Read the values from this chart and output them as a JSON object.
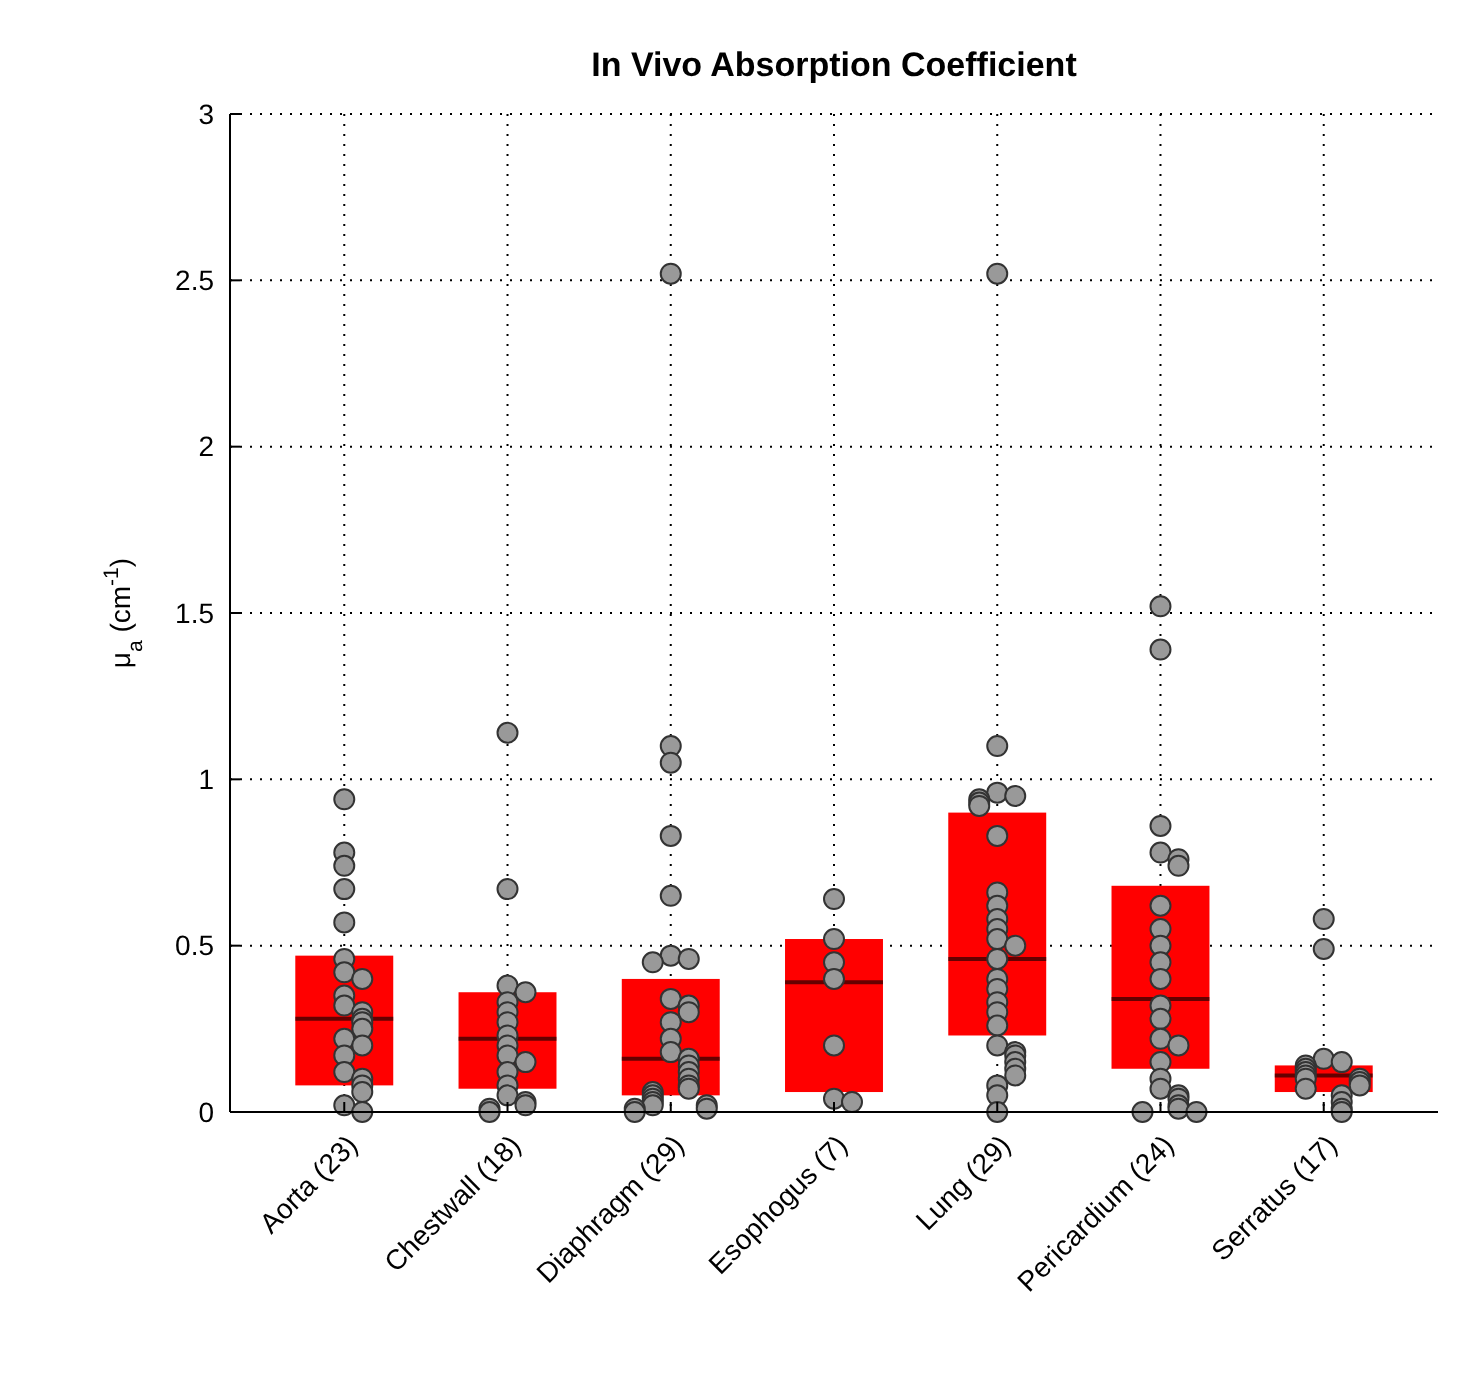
{
  "chart_data": {
    "type": "box",
    "title": "In Vivo Absorption Coefficient",
    "ylabel": "μ$_{a}$ (cm$^{-1}$)",
    "categories": [
      "Aorta (23)",
      "Chestwall (18)",
      "Diaphragm (29)",
      "Esophogus (7)",
      "Lung (29)",
      "Pericardium (24)",
      "Serratus (17)"
    ],
    "ylim": [
      0,
      3
    ],
    "yticks": [
      0,
      0.5,
      1,
      1.5,
      2,
      2.5,
      3
    ],
    "grid": true,
    "series": [
      {
        "type": "box",
        "color": "#ff0000",
        "boxes": [
          {
            "low": 0.08,
            "q1": 0.08,
            "median": 0.28,
            "q3": 0.47,
            "high": 0.47
          },
          {
            "low": 0.07,
            "q1": 0.07,
            "median": 0.22,
            "q3": 0.36,
            "high": 0.36
          },
          {
            "low": 0.05,
            "q1": 0.05,
            "median": 0.16,
            "q3": 0.4,
            "high": 0.4
          },
          {
            "low": 0.06,
            "q1": 0.06,
            "median": 0.39,
            "q3": 0.52,
            "high": 0.52
          },
          {
            "low": 0.23,
            "q1": 0.23,
            "median": 0.46,
            "q3": 0.9,
            "high": 0.9
          },
          {
            "low": 0.13,
            "q1": 0.13,
            "median": 0.34,
            "q3": 0.68,
            "high": 0.68
          },
          {
            "low": 0.06,
            "q1": 0.06,
            "median": 0.11,
            "q3": 0.14,
            "high": 0.14
          }
        ]
      },
      {
        "type": "scatter",
        "color": "#999999",
        "marker": "circle",
        "x": [
          "Aorta (23)",
          "Aorta (23)",
          "Aorta (23)",
          "Aorta (23)",
          "Aorta (23)",
          "Aorta (23)",
          "Aorta (23)",
          "Aorta (23)",
          "Aorta (23)",
          "Aorta (23)",
          "Aorta (23)",
          "Aorta (23)",
          "Aorta (23)",
          "Aorta (23)",
          "Aorta (23)",
          "Aorta (23)",
          "Aorta (23)",
          "Aorta (23)",
          "Aorta (23)",
          "Aorta (23)",
          "Aorta (23)",
          "Aorta (23)",
          "Aorta (23)",
          "Chestwall (18)",
          "Chestwall (18)",
          "Chestwall (18)",
          "Chestwall (18)",
          "Chestwall (18)",
          "Chestwall (18)",
          "Chestwall (18)",
          "Chestwall (18)",
          "Chestwall (18)",
          "Chestwall (18)",
          "Chestwall (18)",
          "Chestwall (18)",
          "Chestwall (18)",
          "Chestwall (18)",
          "Chestwall (18)",
          "Chestwall (18)",
          "Chestwall (18)",
          "Chestwall (18)",
          "Diaphragm (29)",
          "Diaphragm (29)",
          "Diaphragm (29)",
          "Diaphragm (29)",
          "Diaphragm (29)",
          "Diaphragm (29)",
          "Diaphragm (29)",
          "Diaphragm (29)",
          "Diaphragm (29)",
          "Diaphragm (29)",
          "Diaphragm (29)",
          "Diaphragm (29)",
          "Diaphragm (29)",
          "Diaphragm (29)",
          "Diaphragm (29)",
          "Diaphragm (29)",
          "Diaphragm (29)",
          "Diaphragm (29)",
          "Diaphragm (29)",
          "Diaphragm (29)",
          "Diaphragm (29)",
          "Diaphragm (29)",
          "Diaphragm (29)",
          "Diaphragm (29)",
          "Diaphragm (29)",
          "Diaphragm (29)",
          "Diaphragm (29)",
          "Diaphragm (29)",
          "Diaphragm (29)",
          "Esophogus (7)",
          "Esophogus (7)",
          "Esophogus (7)",
          "Esophogus (7)",
          "Esophogus (7)",
          "Esophogus (7)",
          "Esophogus (7)",
          "Lung (29)",
          "Lung (29)",
          "Lung (29)",
          "Lung (29)",
          "Lung (29)",
          "Lung (29)",
          "Lung (29)",
          "Lung (29)",
          "Lung (29)",
          "Lung (29)",
          "Lung (29)",
          "Lung (29)",
          "Lung (29)",
          "Lung (29)",
          "Lung (29)",
          "Lung (29)",
          "Lung (29)",
          "Lung (29)",
          "Lung (29)",
          "Lung (29)",
          "Lung (29)",
          "Lung (29)",
          "Lung (29)",
          "Lung (29)",
          "Lung (29)",
          "Lung (29)",
          "Lung (29)",
          "Lung (29)",
          "Lung (29)",
          "Pericardium (24)",
          "Pericardium (24)",
          "Pericardium (24)",
          "Pericardium (24)",
          "Pericardium (24)",
          "Pericardium (24)",
          "Pericardium (24)",
          "Pericardium (24)",
          "Pericardium (24)",
          "Pericardium (24)",
          "Pericardium (24)",
          "Pericardium (24)",
          "Pericardium (24)",
          "Pericardium (24)",
          "Pericardium (24)",
          "Pericardium (24)",
          "Pericardium (24)",
          "Pericardium (24)",
          "Pericardium (24)",
          "Pericardium (24)",
          "Pericardium (24)",
          "Pericardium (24)",
          "Pericardium (24)",
          "Pericardium (24)",
          "Serratus (17)",
          "Serratus (17)",
          "Serratus (17)",
          "Serratus (17)",
          "Serratus (17)",
          "Serratus (17)",
          "Serratus (17)",
          "Serratus (17)",
          "Serratus (17)",
          "Serratus (17)",
          "Serratus (17)",
          "Serratus (17)",
          "Serratus (17)",
          "Serratus (17)",
          "Serratus (17)",
          "Serratus (17)",
          "Serratus (17)"
        ],
        "values": [
          0.94,
          0.78,
          0.74,
          0.67,
          0.57,
          0.46,
          0.42,
          0.4,
          0.35,
          0.32,
          0.3,
          0.28,
          0.27,
          0.25,
          0.22,
          0.2,
          0.17,
          0.12,
          0.1,
          0.08,
          0.06,
          0.02,
          0,
          1.14,
          0.67,
          0.38,
          0.36,
          0.33,
          0.3,
          0.27,
          0.23,
          0.2,
          0.17,
          0.15,
          0.12,
          0.08,
          0.05,
          0.03,
          0.02,
          0.01,
          0,
          2.52,
          1.1,
          1.05,
          0.83,
          0.65,
          0.47,
          0.46,
          0.45,
          0.34,
          0.32,
          0.3,
          0.27,
          0.22,
          0.18,
          0.16,
          0.14,
          0.12,
          0.1,
          0.08,
          0.07,
          0.06,
          0.05,
          0.04,
          0.03,
          0.02,
          0.02,
          0.01,
          0.01,
          0,
          0.64,
          0.52,
          0.45,
          0.4,
          0.2,
          0.04,
          0.03,
          2.52,
          1.1,
          0.96,
          0.95,
          0.94,
          0.93,
          0.92,
          0.83,
          0.66,
          0.62,
          0.58,
          0.55,
          0.52,
          0.5,
          0.46,
          0.4,
          0.37,
          0.33,
          0.3,
          0.26,
          0.2,
          0.18,
          0.17,
          0.15,
          0.13,
          0.11,
          0.08,
          0.05,
          0,
          1.52,
          1.39,
          0.86,
          0.78,
          0.76,
          0.74,
          0.62,
          0.55,
          0.5,
          0.45,
          0.4,
          0.32,
          0.28,
          0.22,
          0.2,
          0.15,
          0.1,
          0.07,
          0.05,
          0.04,
          0.02,
          0.01,
          0,
          0,
          0.58,
          0.49,
          0.16,
          0.15,
          0.14,
          0.13,
          0.12,
          0.11,
          0.1,
          0.1,
          0.09,
          0.08,
          0.07,
          0.05,
          0.03,
          0.01,
          0
        ]
      }
    ]
  }
}
